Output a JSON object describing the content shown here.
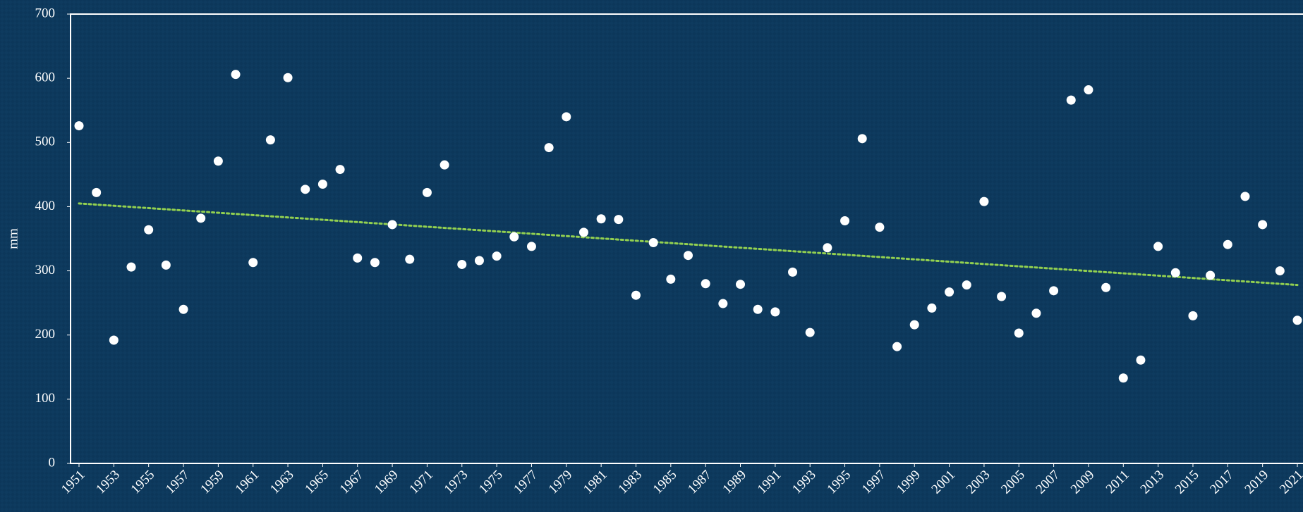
{
  "chart_data": {
    "type": "scatter",
    "y_label": "mm",
    "x": [
      1951,
      1952,
      1953,
      1954,
      1955,
      1956,
      1957,
      1958,
      1959,
      1960,
      1961,
      1962,
      1963,
      1964,
      1965,
      1966,
      1967,
      1968,
      1969,
      1970,
      1971,
      1972,
      1973,
      1974,
      1975,
      1976,
      1977,
      1978,
      1979,
      1980,
      1981,
      1982,
      1983,
      1984,
      1985,
      1986,
      1987,
      1988,
      1989,
      1990,
      1991,
      1992,
      1993,
      1994,
      1995,
      1996,
      1997,
      1998,
      1999,
      2000,
      2001,
      2002,
      2003,
      2004,
      2005,
      2006,
      2007,
      2008,
      2009,
      2010,
      2011,
      2012,
      2013,
      2014,
      2015,
      2016,
      2017,
      2018,
      2019,
      2020,
      2021
    ],
    "values": [
      526,
      422,
      192,
      306,
      364,
      309,
      240,
      382,
      471,
      606,
      313,
      504,
      601,
      427,
      435,
      458,
      320,
      313,
      372,
      318,
      422,
      465,
      310,
      316,
      323,
      353,
      338,
      492,
      540,
      360,
      381,
      380,
      262,
      344,
      287,
      324,
      280,
      249,
      279,
      240,
      236,
      298,
      204,
      336,
      378,
      506,
      368,
      182,
      216,
      242,
      267,
      278,
      408,
      260,
      203,
      234,
      269,
      566,
      582,
      274,
      133,
      161,
      338,
      297,
      230,
      293,
      341,
      416,
      372,
      300,
      223
    ],
    "color": "#ffffff",
    "trend": {
      "color": "#92d050",
      "values": [
        405,
        278
      ]
    },
    "xlim": [
      1951,
      2021
    ],
    "xticks": [
      1951,
      1953,
      1955,
      1957,
      1959,
      1961,
      1963,
      1965,
      1967,
      1969,
      1971,
      1973,
      1975,
      1977,
      1979,
      1981,
      1983,
      1985,
      1987,
      1989,
      1991,
      1993,
      1995,
      1997,
      1999,
      2001,
      2003,
      2005,
      2007,
      2009,
      2011,
      2013,
      2015,
      2017,
      2019,
      2021
    ],
    "ylim": [
      0,
      700
    ],
    "yticks": [
      0,
      100,
      200,
      300,
      400,
      500,
      600,
      700
    ]
  }
}
